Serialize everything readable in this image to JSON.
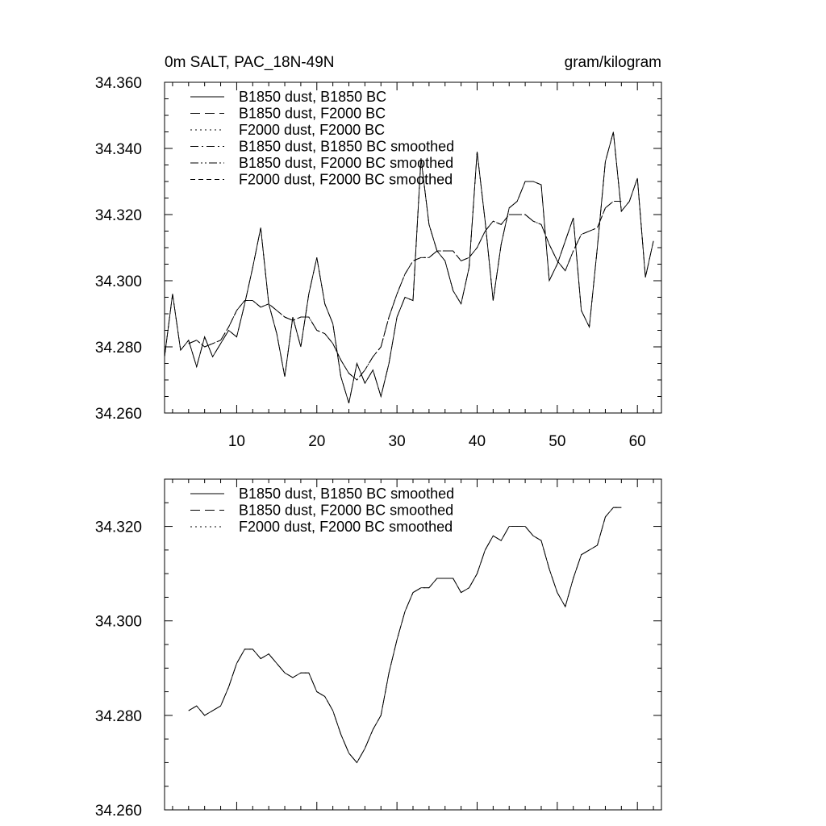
{
  "chart_data": [
    {
      "type": "line",
      "title_left": "0m SALT, PAC_18N-49N",
      "title_right": "gram/kilogram",
      "xlabel": "",
      "ylabel": "",
      "xlim": [
        1,
        63
      ],
      "ylim": [
        34.26,
        34.36
      ],
      "x_ticks": [
        "10",
        "20",
        "30",
        "40",
        "50",
        "60"
      ],
      "y_ticks": [
        "34.260",
        "34.280",
        "34.300",
        "34.320",
        "34.340",
        "34.360"
      ],
      "legend_position": "top-left",
      "grid": false,
      "series": [
        {
          "name": "B1850 dust, B1850 BC",
          "style": "solid",
          "x_start": 1,
          "values": [
            34.277,
            34.296,
            34.279,
            34.282,
            34.274,
            34.283,
            34.277,
            34.281,
            34.285,
            34.283,
            34.293,
            34.304,
            34.316,
            34.293,
            34.284,
            34.271,
            34.289,
            34.28,
            34.296,
            34.307,
            34.293,
            34.287,
            34.271,
            34.263,
            34.275,
            34.269,
            34.273,
            34.265,
            34.275,
            34.289,
            34.295,
            34.294,
            34.337,
            34.317,
            34.309,
            34.306,
            34.297,
            34.293,
            34.304,
            34.339,
            34.318,
            34.294,
            34.311,
            34.322,
            34.324,
            34.33,
            34.33,
            34.329,
            34.3,
            34.305,
            34.312,
            34.319,
            34.291,
            34.286,
            34.31,
            34.336,
            34.345,
            34.321,
            34.324,
            34.331,
            34.301,
            34.312
          ]
        },
        {
          "name": "B1850 dust, F2000 BC",
          "style": "long-dash",
          "x_start": 1,
          "values": [
            34.277,
            34.296,
            34.279,
            34.282,
            34.274,
            34.283,
            34.277,
            34.281,
            34.285,
            34.283,
            34.293,
            34.304,
            34.316,
            34.293,
            34.284,
            34.271,
            34.289,
            34.28,
            34.296,
            34.307,
            34.293,
            34.287,
            34.271,
            34.263,
            34.275,
            34.269,
            34.273,
            34.265,
            34.275,
            34.289,
            34.295,
            34.294,
            34.337,
            34.317,
            34.309,
            34.306,
            34.297,
            34.293,
            34.304,
            34.339,
            34.318,
            34.294,
            34.311,
            34.322,
            34.324,
            34.33,
            34.33,
            34.329,
            34.3,
            34.305,
            34.312,
            34.319,
            34.291,
            34.286,
            34.31,
            34.336,
            34.345,
            34.321,
            34.324,
            34.331,
            34.301,
            34.312
          ]
        },
        {
          "name": "F2000 dust, F2000 BC",
          "style": "dotted",
          "x_start": 1,
          "values": [
            34.277,
            34.296,
            34.279,
            34.282,
            34.274,
            34.283,
            34.277,
            34.281,
            34.285,
            34.283,
            34.293,
            34.304,
            34.316,
            34.293,
            34.284,
            34.271,
            34.289,
            34.28,
            34.296,
            34.307,
            34.293,
            34.287,
            34.271,
            34.263,
            34.275,
            34.269,
            34.273,
            34.265,
            34.275,
            34.289,
            34.295,
            34.294,
            34.337,
            34.317,
            34.309,
            34.306,
            34.297,
            34.293,
            34.304,
            34.339,
            34.318,
            34.294,
            34.311,
            34.322,
            34.324,
            34.33,
            34.33,
            34.329,
            34.3,
            34.305,
            34.312,
            34.319,
            34.291,
            34.286,
            34.31,
            34.336,
            34.345,
            34.321,
            34.324,
            34.331,
            34.301,
            34.312
          ]
        },
        {
          "name": "B1850 dust, B1850 BC smoothed",
          "style": "dash-dot",
          "x_start": 4,
          "values": [
            34.281,
            34.282,
            34.28,
            34.281,
            34.282,
            34.286,
            34.291,
            34.294,
            34.294,
            34.292,
            34.293,
            34.291,
            34.289,
            34.288,
            34.289,
            34.289,
            34.285,
            34.284,
            34.281,
            34.276,
            34.272,
            34.27,
            34.273,
            34.277,
            34.28,
            34.289,
            34.296,
            34.302,
            34.306,
            34.307,
            34.307,
            34.309,
            34.309,
            34.309,
            34.306,
            34.307,
            34.31,
            34.315,
            34.318,
            34.317,
            34.32,
            34.32,
            34.32,
            34.318,
            34.317,
            34.311,
            34.306,
            34.303,
            34.309,
            34.314,
            34.315,
            34.316,
            34.322,
            34.324,
            34.324
          ]
        },
        {
          "name": "B1850 dust, F2000 BC smoothed",
          "style": "dash-dot-dot",
          "x_start": 4,
          "values": [
            34.281,
            34.282,
            34.28,
            34.281,
            34.282,
            34.286,
            34.291,
            34.294,
            34.294,
            34.292,
            34.293,
            34.291,
            34.289,
            34.288,
            34.289,
            34.289,
            34.285,
            34.284,
            34.281,
            34.276,
            34.272,
            34.27,
            34.273,
            34.277,
            34.28,
            34.289,
            34.296,
            34.302,
            34.306,
            34.307,
            34.307,
            34.309,
            34.309,
            34.309,
            34.306,
            34.307,
            34.31,
            34.315,
            34.318,
            34.317,
            34.32,
            34.32,
            34.32,
            34.318,
            34.317,
            34.311,
            34.306,
            34.303,
            34.309,
            34.314,
            34.315,
            34.316,
            34.322,
            34.324,
            34.324
          ]
        },
        {
          "name": "F2000 dust, F2000 BC smoothed",
          "style": "short-dash",
          "x_start": 4,
          "values": [
            34.281,
            34.282,
            34.28,
            34.281,
            34.282,
            34.286,
            34.291,
            34.294,
            34.294,
            34.292,
            34.293,
            34.291,
            34.289,
            34.288,
            34.289,
            34.289,
            34.285,
            34.284,
            34.281,
            34.276,
            34.272,
            34.27,
            34.273,
            34.277,
            34.28,
            34.289,
            34.296,
            34.302,
            34.306,
            34.307,
            34.307,
            34.309,
            34.309,
            34.309,
            34.306,
            34.307,
            34.31,
            34.315,
            34.318,
            34.317,
            34.32,
            34.32,
            34.32,
            34.318,
            34.317,
            34.311,
            34.306,
            34.303,
            34.309,
            34.314,
            34.315,
            34.316,
            34.322,
            34.324,
            34.324
          ]
        }
      ]
    },
    {
      "type": "line",
      "title_left": "",
      "title_right": "",
      "xlabel": "",
      "ylabel": "",
      "xlim": [
        1,
        63
      ],
      "ylim": [
        34.26,
        34.33
      ],
      "x_ticks": [],
      "y_ticks": [
        "34.260",
        "34.280",
        "34.300",
        "34.320"
      ],
      "legend_position": "top-left",
      "grid": false,
      "series": [
        {
          "name": "B1850 dust, B1850 BC smoothed",
          "style": "solid",
          "x_start": 4,
          "values": [
            34.281,
            34.282,
            34.28,
            34.281,
            34.282,
            34.286,
            34.291,
            34.294,
            34.294,
            34.292,
            34.293,
            34.291,
            34.289,
            34.288,
            34.289,
            34.289,
            34.285,
            34.284,
            34.281,
            34.276,
            34.272,
            34.27,
            34.273,
            34.277,
            34.28,
            34.289,
            34.296,
            34.302,
            34.306,
            34.307,
            34.307,
            34.309,
            34.309,
            34.309,
            34.306,
            34.307,
            34.31,
            34.315,
            34.318,
            34.317,
            34.32,
            34.32,
            34.32,
            34.318,
            34.317,
            34.311,
            34.306,
            34.303,
            34.309,
            34.314,
            34.315,
            34.316,
            34.322,
            34.324,
            34.324
          ]
        },
        {
          "name": "B1850 dust, F2000 BC smoothed",
          "style": "long-dash",
          "x_start": 4,
          "values": [
            34.281,
            34.282,
            34.28,
            34.281,
            34.282,
            34.286,
            34.291,
            34.294,
            34.294,
            34.292,
            34.293,
            34.291,
            34.289,
            34.288,
            34.289,
            34.289,
            34.285,
            34.284,
            34.281,
            34.276,
            34.272,
            34.27,
            34.273,
            34.277,
            34.28,
            34.289,
            34.296,
            34.302,
            34.306,
            34.307,
            34.307,
            34.309,
            34.309,
            34.309,
            34.306,
            34.307,
            34.31,
            34.315,
            34.318,
            34.317,
            34.32,
            34.32,
            34.32,
            34.318,
            34.317,
            34.311,
            34.306,
            34.303,
            34.309,
            34.314,
            34.315,
            34.316,
            34.322,
            34.324,
            34.324
          ]
        },
        {
          "name": "F2000 dust, F2000 BC smoothed",
          "style": "dotted",
          "x_start": 4,
          "values": [
            34.281,
            34.282,
            34.28,
            34.281,
            34.282,
            34.286,
            34.291,
            34.294,
            34.294,
            34.292,
            34.293,
            34.291,
            34.289,
            34.288,
            34.289,
            34.289,
            34.285,
            34.284,
            34.281,
            34.276,
            34.272,
            34.27,
            34.273,
            34.277,
            34.28,
            34.289,
            34.296,
            34.302,
            34.306,
            34.307,
            34.307,
            34.309,
            34.309,
            34.309,
            34.306,
            34.307,
            34.31,
            34.315,
            34.318,
            34.317,
            34.32,
            34.32,
            34.32,
            34.318,
            34.317,
            34.311,
            34.306,
            34.303,
            34.309,
            34.314,
            34.315,
            34.316,
            34.322,
            34.324,
            34.324
          ]
        }
      ]
    }
  ]
}
